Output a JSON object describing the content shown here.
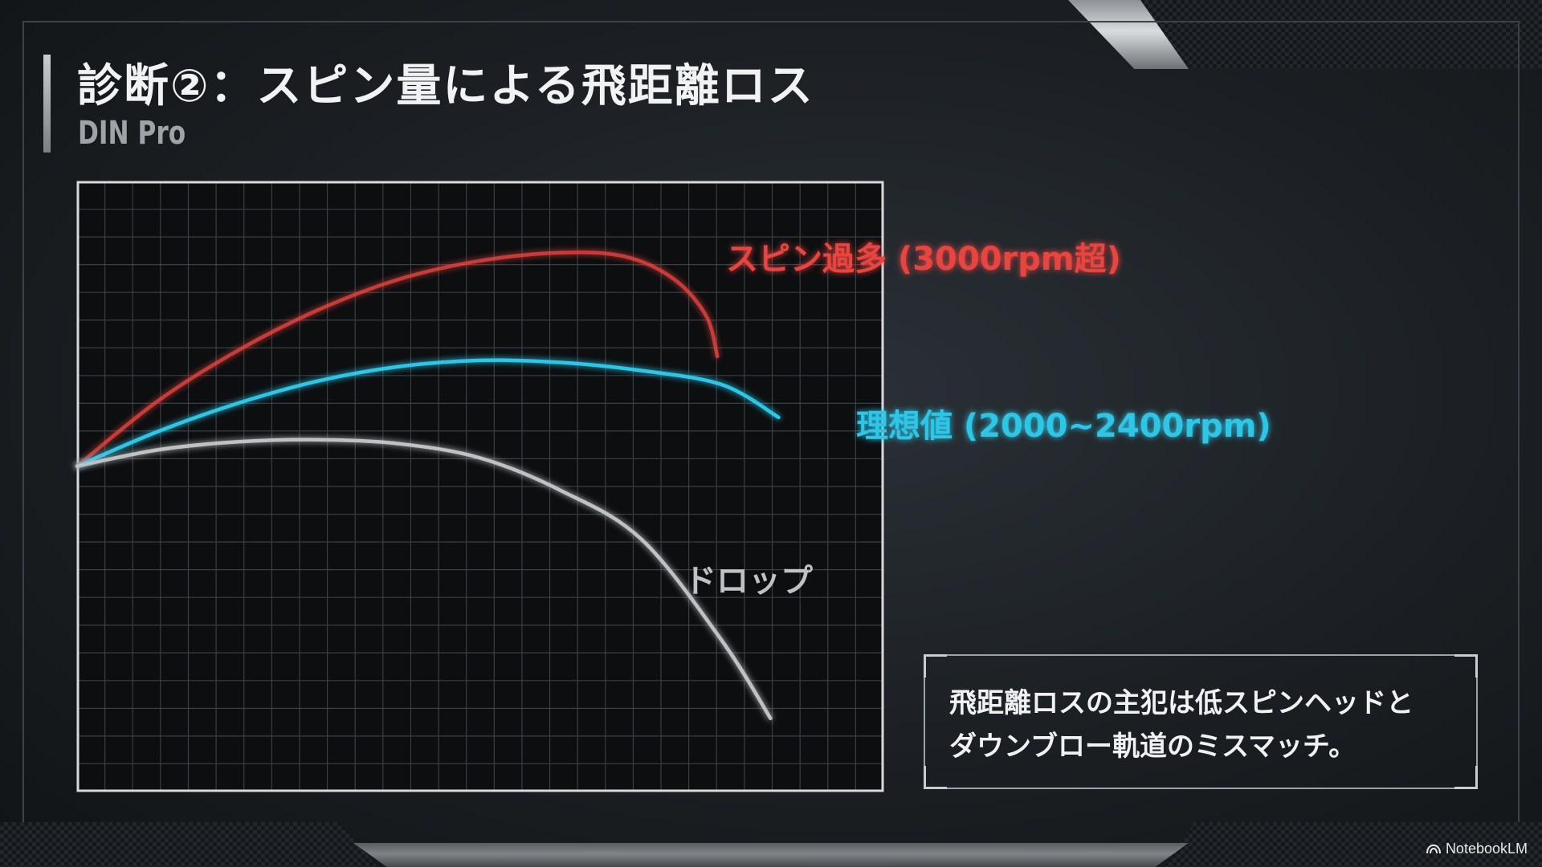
{
  "slide": {
    "title": "診断②：スピン量による飛距離ロス",
    "subtitle": "DIN Pro"
  },
  "callout": {
    "line1": "飛距離ロスの主犯は低スピンヘッドと",
    "line2": "ダウンブロー軌道のミスマッチ。"
  },
  "brand": {
    "name": "NotebookLM",
    "icon": "notebooklm-logo-icon"
  },
  "colors": {
    "excess_spin": "#e8453f",
    "ideal": "#2ec6e6",
    "drop": "#bfc2c5",
    "grid": "#3a3f44"
  },
  "chart_data": {
    "type": "line",
    "title": "",
    "xlabel": "",
    "ylabel": "",
    "grid": true,
    "legend": "inline labels at curve ends",
    "series": [
      {
        "name": "スピン過多 (3000rpm超)",
        "color": "#e8453f",
        "points": [
          [
            0,
            0
          ],
          [
            5,
            1.6
          ],
          [
            10,
            2.85
          ],
          [
            15,
            3.85
          ],
          [
            20,
            4.6
          ],
          [
            25,
            5.05
          ],
          [
            30,
            5.25
          ],
          [
            34,
            5.15
          ],
          [
            37,
            4.6
          ],
          [
            39,
            3.7
          ],
          [
            39.7,
            2.7
          ]
        ]
      },
      {
        "name": "理想値 (2000~2400rpm)",
        "color": "#2ec6e6",
        "points": [
          [
            0,
            0
          ],
          [
            5,
            0.85
          ],
          [
            10,
            1.55
          ],
          [
            15,
            2.1
          ],
          [
            20,
            2.45
          ],
          [
            25,
            2.6
          ],
          [
            30,
            2.55
          ],
          [
            35,
            2.35
          ],
          [
            40,
            2.0
          ],
          [
            43.5,
            1.2
          ]
        ]
      },
      {
        "name": "ドロップ",
        "color": "#bfc2c5",
        "points": [
          [
            0,
            0
          ],
          [
            5,
            0.4
          ],
          [
            10,
            0.6
          ],
          [
            15,
            0.65
          ],
          [
            20,
            0.55
          ],
          [
            25,
            0.2
          ],
          [
            30,
            -0.6
          ],
          [
            35,
            -1.8
          ],
          [
            40,
            -4.3
          ],
          [
            43,
            -6.2
          ]
        ]
      }
    ]
  }
}
